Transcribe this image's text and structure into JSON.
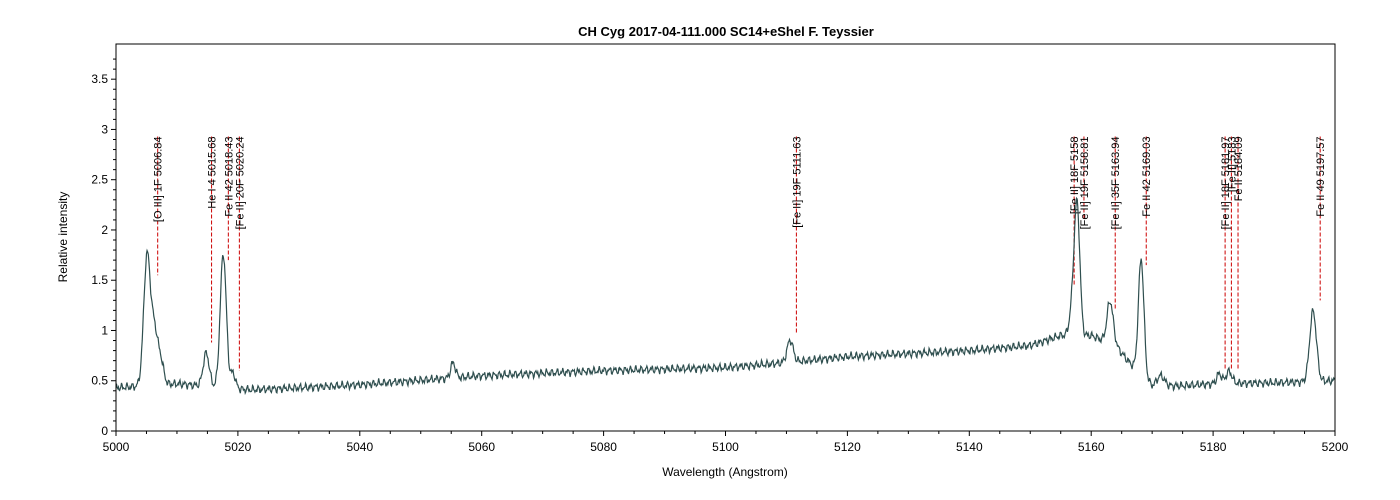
{
  "chart_data": {
    "type": "line",
    "title": "CH Cyg  2017-04-111.000  SC14+eShel F. Teyssier",
    "xlabel": "Wavelength (Angstrom)",
    "ylabel": "Relative intensity",
    "xlim": [
      5000,
      5200
    ],
    "ylim": [
      0,
      3.85
    ],
    "x_ticks": [
      5000,
      5020,
      5040,
      5060,
      5080,
      5100,
      5120,
      5140,
      5160,
      5180,
      5200
    ],
    "y_ticks": [
      0,
      0.5,
      1,
      1.5,
      2,
      2.5,
      3,
      3.5
    ],
    "y_tick_labels": [
      "0",
      "0.5",
      "1",
      "1.5",
      "2",
      "2.5",
      "3",
      "3.5"
    ],
    "grid": false,
    "series_color": "#2f4f4f",
    "marker_color": "#cc0000",
    "continuum": [
      [
        5000,
        0.43
      ],
      [
        5010,
        0.47
      ],
      [
        5022,
        0.41
      ],
      [
        5030,
        0.43
      ],
      [
        5040,
        0.46
      ],
      [
        5060,
        0.55
      ],
      [
        5080,
        0.6
      ],
      [
        5100,
        0.63
      ],
      [
        5110,
        0.68
      ],
      [
        5120,
        0.74
      ],
      [
        5130,
        0.77
      ],
      [
        5140,
        0.8
      ],
      [
        5150,
        0.85
      ],
      [
        5155,
        0.95
      ],
      [
        5160,
        0.95
      ],
      [
        5164,
        0.85
      ],
      [
        5166,
        0.7
      ],
      [
        5170,
        0.45
      ],
      [
        5175,
        0.45
      ],
      [
        5180,
        0.47
      ],
      [
        5190,
        0.48
      ],
      [
        5200,
        0.5
      ]
    ],
    "peaks": [
      {
        "x": 5005.1,
        "h": 1.3,
        "w": 0.55
      },
      {
        "x": 5006.3,
        "h": 0.5,
        "w": 0.5
      },
      {
        "x": 5007.3,
        "h": 0.25,
        "w": 0.5
      },
      {
        "x": 5014.8,
        "h": 0.33,
        "w": 0.5
      },
      {
        "x": 5017.6,
        "h": 1.33,
        "w": 0.5
      },
      {
        "x": 5019.2,
        "h": 0.15,
        "w": 0.4
      },
      {
        "x": 5055.3,
        "h": 0.15,
        "w": 0.4
      },
      {
        "x": 5110.6,
        "h": 0.22,
        "w": 0.5
      },
      {
        "x": 5157.0,
        "h": 0.3,
        "w": 0.5
      },
      {
        "x": 5157.7,
        "h": 1.22,
        "w": 0.45
      },
      {
        "x": 5163.1,
        "h": 0.42,
        "w": 0.5
      },
      {
        "x": 5168.2,
        "h": 1.15,
        "w": 0.45
      },
      {
        "x": 5171.4,
        "h": 0.1,
        "w": 0.6
      },
      {
        "x": 5181.0,
        "h": 0.1,
        "w": 0.4
      },
      {
        "x": 5182.6,
        "h": 0.12,
        "w": 0.5
      },
      {
        "x": 5196.4,
        "h": 0.7,
        "w": 0.55
      }
    ],
    "noise_amplitude": 0.05,
    "annotations": [
      {
        "x": 5006.84,
        "label": "[O III] 1F 5006.84",
        "y_low": 1.55
      },
      {
        "x": 5015.68,
        "label": "He I 4 5015.68",
        "y_low": 0.88
      },
      {
        "x": 5018.43,
        "label": "Fe II 42 5018.43",
        "y_low": 1.7
      },
      {
        "x": 5020.24,
        "label": "[Fe II] 20F 5020.24",
        "y_low": 0.6
      },
      {
        "x": 5111.63,
        "label": "[Fe II] 19F 5111.63",
        "y_low": 0.97
      },
      {
        "x": 5157.2,
        "label": "[Fe II] 18F 5158",
        "y_low": 1.45
      },
      {
        "x": 5158.81,
        "label": "[Fe II] 19F 5158.81",
        "y_low": 2.1
      },
      {
        "x": 5163.94,
        "label": "[Fe II] 35F 5163.94",
        "y_low": 1.2
      },
      {
        "x": 5169.03,
        "label": "Fe II 42 5169.03",
        "y_low": 1.65
      },
      {
        "x": 5181.97,
        "label": "[Fe II] 18F 5181.97",
        "y_low": 0.62
      },
      {
        "x": 5183.0,
        "label": "[Fe II] 5183",
        "y_low": 0.62
      },
      {
        "x": 5184.09,
        "label": "Fe II 5184.09",
        "y_low": 0.62
      },
      {
        "x": 5197.57,
        "label": "Fe II 49 5197.57",
        "y_low": 1.3
      }
    ]
  }
}
